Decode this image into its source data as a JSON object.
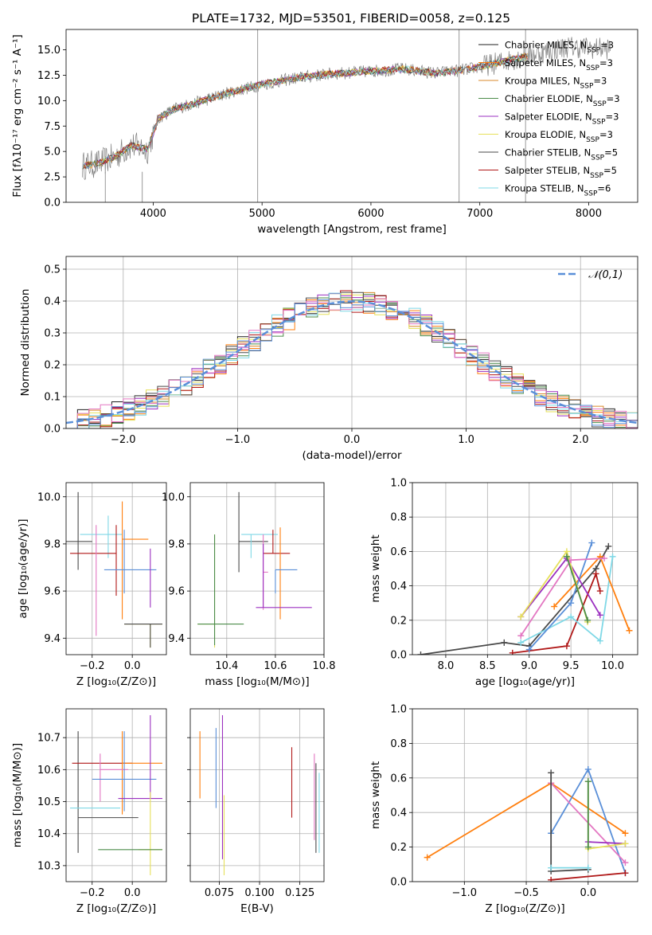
{
  "figure_title": "PLATE=1732, MJD=53501, FIBERID=0058, z=0.125",
  "colors": [
    "#1f1f1f",
    "#ff7f0e",
    "#d98a2b",
    "#4c8c4a",
    "#9b30c0",
    "#e6e05a",
    "#4a4a4a",
    "#b01818",
    "#7fd8e6"
  ],
  "chart_data": [
    {
      "id": "spectrum",
      "type": "line",
      "title": "PLATE=1732, MJD=53501, FIBERID=0058, z=0.125",
      "xlabel": "wavelength [Angstrom, rest frame]",
      "ylabel": "Flux [fλ10⁻¹⁷ erg cm⁻² s⁻¹ A⁻¹]",
      "xlim": [
        3200,
        8450
      ],
      "ylim": [
        0,
        17
      ],
      "xticks": [
        4000,
        5000,
        6000,
        7000,
        8000
      ],
      "yticks": [
        0.0,
        2.5,
        5.0,
        7.5,
        10.0,
        12.5,
        15.0
      ],
      "legend_location": "top-right",
      "series": [
        {
          "name": "Chabrier MILES, N<sub>SSP</sub>=3",
          "color": "#1f1f1f"
        },
        {
          "name": "Salpeter MILES, N<sub>SSP</sub>=3",
          "color": "#ff7f0e"
        },
        {
          "name": "Kroupa MILES, N<sub>SSP</sub>=3",
          "color": "#d98a2b"
        },
        {
          "name": "Chabrier ELODIE, N<sub>SSP</sub>=3",
          "color": "#4c8c4a"
        },
        {
          "name": "Salpeter ELODIE, N<sub>SSP</sub>=3",
          "color": "#9b30c0"
        },
        {
          "name": "Kroupa ELODIE, N<sub>SSP</sub>=3",
          "color": "#e6e05a"
        },
        {
          "name": "Chabrier STELIB, N<sub>SSP</sub>=5",
          "color": "#4a4a4a"
        },
        {
          "name": "Salpeter STELIB, N<sub>SSP</sub>=5",
          "color": "#b01818"
        },
        {
          "name": "Kroupa STELIB, N<sub>SSP</sub>=6",
          "color": "#7fd8e6"
        }
      ],
      "continuum": [
        [
          3350,
          3.6
        ],
        [
          3500,
          3.8
        ],
        [
          3650,
          4.5
        ],
        [
          3800,
          5.6
        ],
        [
          3950,
          5.2
        ],
        [
          4050,
          8.3
        ],
        [
          4200,
          9.2
        ],
        [
          4400,
          9.8
        ],
        [
          4700,
          10.8
        ],
        [
          5000,
          11.6
        ],
        [
          5300,
          12.2
        ],
        [
          5600,
          12.6
        ],
        [
          6000,
          12.9
        ],
        [
          6300,
          13.1
        ],
        [
          6600,
          12.7
        ],
        [
          6900,
          13.1
        ],
        [
          7200,
          13.8
        ],
        [
          7400,
          14.3
        ],
        [
          7600,
          14.8
        ],
        [
          7800,
          15.3
        ],
        [
          8000,
          15.2
        ],
        [
          8200,
          15.1
        ]
      ]
    },
    {
      "id": "residuals",
      "type": "histogram",
      "xlabel": "(data-model)/error",
      "ylabel": "Normed distribution",
      "xlim": [
        -2.5,
        2.5
      ],
      "ylim": [
        0,
        0.54
      ],
      "xticks": [
        -2,
        -1,
        0,
        1,
        2
      ],
      "yticks": [
        0.0,
        0.1,
        0.2,
        0.3,
        0.4,
        0.5
      ],
      "reference_label": "𝒩(0,1)",
      "reference_color": "#5a8fd8",
      "legend_location": "top-right"
    },
    {
      "id": "age_vs_Z",
      "type": "scatter-errorbar",
      "xlabel": "Z [log₁₀(Z/Z⊙)]",
      "ylabel": "age  [log₁₀(age/yr)]",
      "xlim": [
        -0.33,
        0.17
      ],
      "ylim": [
        9.33,
        10.06
      ],
      "xticks": [
        -0.2,
        0.0
      ],
      "yticks": [
        9.4,
        9.6,
        9.8,
        10.0
      ],
      "points": [
        {
          "x": -0.27,
          "y": 9.81,
          "xerr": [
            0.2,
            0.07
          ],
          "yerr": [
            0.12,
            0.21
          ],
          "color": "#4a4a4a"
        },
        {
          "x": -0.12,
          "y": 9.84,
          "xerr": [
            0.14,
            0.07
          ],
          "yerr": [
            0.1,
            0.08
          ],
          "color": "#7fd8e6"
        },
        {
          "x": -0.08,
          "y": 9.76,
          "xerr": [
            0.23,
            0.0
          ],
          "yerr": [
            0.18,
            0.12
          ],
          "color": "#b01818"
        },
        {
          "x": -0.05,
          "y": 9.82,
          "xerr": [
            0.0,
            0.13
          ],
          "yerr": [
            0.34,
            0.16
          ],
          "color": "#ff7f0e"
        },
        {
          "x": -0.18,
          "y": 9.6,
          "xerr": [
            0.0,
            0.0
          ],
          "yerr": [
            0.19,
            0.28
          ],
          "color": "#e377c2"
        },
        {
          "x": -0.04,
          "y": 9.69,
          "xerr": [
            0.1,
            0.16
          ],
          "yerr": [
            0.1,
            0.17
          ],
          "color": "#5a8fd8"
        },
        {
          "x": 0.09,
          "y": 9.53,
          "xerr": [
            0.0,
            0.0
          ],
          "yerr": [
            0.0,
            0.25
          ],
          "color": "#9b30c0"
        },
        {
          "x": 0.09,
          "y": 9.46,
          "xerr": [
            0.13,
            0.06
          ],
          "yerr": [
            0.1,
            0.0
          ],
          "color": "#e6e05a"
        },
        {
          "x": 0.09,
          "y": 9.46,
          "xerr": [
            0.13,
            0.06
          ],
          "yerr": [
            0.1,
            0.0
          ],
          "color": "#4a4a4a"
        }
      ]
    },
    {
      "id": "age_vs_mass",
      "type": "scatter-errorbar",
      "xlabel": "mass [log₁₀(M/M⊙)]",
      "ylabel": "",
      "xlim": [
        10.25,
        10.8
      ],
      "ylim": [
        9.33,
        10.06
      ],
      "xticks": [
        10.4,
        10.6,
        10.8
      ],
      "yticks": [
        9.4,
        9.6,
        9.8,
        10.0
      ],
      "points": [
        {
          "x": 10.45,
          "y": 9.81,
          "xerr": [
            0.0,
            0.12
          ],
          "yerr": [
            0.13,
            0.21
          ],
          "color": "#4a4a4a"
        },
        {
          "x": 10.5,
          "y": 9.84,
          "xerr": [
            0.04,
            0.11
          ],
          "yerr": [
            0.1,
            0.0
          ],
          "color": "#7fd8e6"
        },
        {
          "x": 10.59,
          "y": 9.76,
          "xerr": [
            0.04,
            0.07
          ],
          "yerr": [
            0.0,
            0.1
          ],
          "color": "#b01818"
        },
        {
          "x": 10.62,
          "y": 9.82,
          "xerr": [
            0.0,
            0.0
          ],
          "yerr": [
            0.34,
            0.05
          ],
          "color": "#ff7f0e"
        },
        {
          "x": 10.55,
          "y": 9.68,
          "xerr": [
            0.0,
            0.02
          ],
          "yerr": [
            0.16,
            0.16
          ],
          "color": "#e377c2"
        },
        {
          "x": 10.6,
          "y": 9.69,
          "xerr": [
            0.0,
            0.09
          ],
          "yerr": [
            0.1,
            0.0
          ],
          "color": "#5a8fd8"
        },
        {
          "x": 10.55,
          "y": 9.53,
          "xerr": [
            0.03,
            0.2
          ],
          "yerr": [
            0.0,
            0.27
          ],
          "color": "#9b30c0"
        },
        {
          "x": 10.35,
          "y": 9.46,
          "xerr": [
            0.07,
            0.0
          ],
          "yerr": [
            0.1,
            0.38
          ],
          "color": "#e6e05a"
        },
        {
          "x": 10.35,
          "y": 9.46,
          "xerr": [
            0.07,
            0.12
          ],
          "yerr": [
            0.09,
            0.38
          ],
          "color": "#4c8c4a"
        }
      ]
    },
    {
      "id": "weight_vs_age",
      "type": "line",
      "xlabel": "age  [log₁₀(age/yr)]",
      "ylabel": "mass weight",
      "xlim": [
        7.6,
        10.3
      ],
      "ylim": [
        0,
        1.0
      ],
      "xticks": [
        8.0,
        8.5,
        9.0,
        9.5,
        10.0
      ],
      "yticks": [
        0.0,
        0.2,
        0.4,
        0.6,
        0.8,
        1.0
      ],
      "series": [
        {
          "color": "#4a4a4a",
          "points": [
            [
              7.7,
              0.0
            ],
            [
              8.7,
              0.07
            ],
            [
              9.0,
              0.05
            ],
            [
              9.8,
              0.5
            ],
            [
              9.95,
              0.63
            ]
          ]
        },
        {
          "color": "#b01818",
          "points": [
            [
              8.8,
              0.01
            ],
            [
              9.45,
              0.05
            ],
            [
              9.8,
              0.47
            ],
            [
              9.85,
              0.37
            ]
          ]
        },
        {
          "color": "#7fd8e6",
          "points": [
            [
              8.9,
              0.07
            ],
            [
              9.5,
              0.22
            ],
            [
              9.85,
              0.08
            ],
            [
              10.0,
              0.57
            ]
          ]
        },
        {
          "color": "#ff7f0e",
          "points": [
            [
              9.3,
              0.28
            ],
            [
              9.85,
              0.57
            ],
            [
              10.2,
              0.14
            ]
          ]
        },
        {
          "color": "#5a8fd8",
          "points": [
            [
              9.0,
              0.03
            ],
            [
              9.5,
              0.3
            ],
            [
              9.75,
              0.65
            ]
          ]
        },
        {
          "color": "#9b30c0",
          "points": [
            [
              8.9,
              0.22
            ],
            [
              9.45,
              0.56
            ],
            [
              9.85,
              0.23
            ]
          ]
        },
        {
          "color": "#e6e05a",
          "points": [
            [
              8.9,
              0.22
            ],
            [
              9.45,
              0.6
            ],
            [
              9.7,
              0.19
            ]
          ]
        },
        {
          "color": "#e377c2",
          "points": [
            [
              8.9,
              0.11
            ],
            [
              9.5,
              0.55
            ],
            [
              9.9,
              0.56
            ]
          ]
        },
        {
          "color": "#4c8c4a",
          "points": [
            [
              9.45,
              0.57
            ],
            [
              9.7,
              0.2
            ]
          ]
        }
      ]
    },
    {
      "id": "mass_vs_Z",
      "type": "scatter-errorbar",
      "xlabel": "Z [log₁₀(Z/Z⊙)]",
      "ylabel": "mass [log₁₀(M/M⊙)]",
      "xlim": [
        -0.33,
        0.17
      ],
      "ylim": [
        10.25,
        10.79
      ],
      "xticks": [
        -0.2,
        0.0
      ],
      "yticks": [
        10.3,
        10.4,
        10.5,
        10.6,
        10.7
      ],
      "points": [
        {
          "x": -0.27,
          "y": 10.45,
          "xerr": [
            0.0,
            0.3
          ],
          "yerr": [
            0.11,
            0.27
          ],
          "color": "#4a4a4a"
        },
        {
          "x": -0.26,
          "y": 10.48,
          "xerr": [
            0.05,
            0.2
          ],
          "yerr": [
            0.0,
            0.0
          ],
          "color": "#7fd8e6"
        },
        {
          "x": -0.2,
          "y": 10.62,
          "xerr": [
            0.1,
            0.2
          ],
          "yerr": [
            0.0,
            0.0
          ],
          "color": "#b01818"
        },
        {
          "x": -0.05,
          "y": 10.62,
          "xerr": [
            0.0,
            0.2
          ],
          "yerr": [
            0.16,
            0.1
          ],
          "color": "#ff7f0e"
        },
        {
          "x": -0.16,
          "y": 10.6,
          "xerr": [
            0.0,
            0.14
          ],
          "yerr": [
            0.1,
            0.05
          ],
          "color": "#e377c2"
        },
        {
          "x": -0.04,
          "y": 10.57,
          "xerr": [
            0.16,
            0.16
          ],
          "yerr": [
            0.1,
            0.15
          ],
          "color": "#5a8fd8"
        },
        {
          "x": 0.09,
          "y": 10.51,
          "xerr": [
            0.16,
            0.06
          ],
          "yerr": [
            0.0,
            0.26
          ],
          "color": "#9b30c0"
        },
        {
          "x": 0.09,
          "y": 10.35,
          "xerr": [
            0.06,
            0.06
          ],
          "yerr": [
            0.08,
            0.18
          ],
          "color": "#e6e05a"
        },
        {
          "x": 0.09,
          "y": 10.35,
          "xerr": [
            0.26,
            0.06
          ],
          "yerr": [
            0.0,
            0.0
          ],
          "color": "#4c8c4a"
        }
      ]
    },
    {
      "id": "mass_vs_ebv",
      "type": "scatter-errorbar",
      "xlabel": "E(B-V)",
      "ylabel": "",
      "xlim": [
        0.057,
        0.14
      ],
      "ylim": [
        10.25,
        10.79
      ],
      "xticks": [
        0.075,
        0.1,
        0.125
      ],
      "xtick_labels": [
        "0.075",
        "0.100",
        "0.125"
      ],
      "yticks": [
        10.3,
        10.4,
        10.5,
        10.6,
        10.7
      ],
      "points": [
        {
          "x": 0.063,
          "y": 10.6,
          "yerr": [
            0.09,
            0.12
          ],
          "color": "#ff7f0e"
        },
        {
          "x": 0.073,
          "y": 10.6,
          "yerr": [
            0.12,
            0.13
          ],
          "color": "#5a8fd8"
        },
        {
          "x": 0.077,
          "y": 10.6,
          "yerr": [
            0.28,
            0.17
          ],
          "color": "#9b30c0"
        },
        {
          "x": 0.078,
          "y": 10.4,
          "yerr": [
            0.13,
            0.12
          ],
          "color": "#e6e05a"
        },
        {
          "x": 0.12,
          "y": 10.56,
          "yerr": [
            0.11,
            0.11
          ],
          "color": "#b01818"
        },
        {
          "x": 0.134,
          "y": 10.5,
          "yerr": [
            0.12,
            0.15
          ],
          "color": "#e377c2"
        },
        {
          "x": 0.135,
          "y": 10.49,
          "yerr": [
            0.15,
            0.13
          ],
          "color": "#4a4a4a"
        },
        {
          "x": 0.137,
          "y": 10.46,
          "yerr": [
            0.12,
            0.13
          ],
          "color": "#7fd8e6"
        }
      ]
    },
    {
      "id": "weight_vs_Z",
      "type": "line",
      "xlabel": "Z [log₁₀(Z/Z⊙)]",
      "ylabel": "mass weight",
      "xlim": [
        -1.42,
        0.4
      ],
      "ylim": [
        0,
        1.0
      ],
      "xticks": [
        -1.0,
        -0.5,
        0.0
      ],
      "yticks": [
        0.0,
        0.2,
        0.4,
        0.6,
        0.8,
        1.0
      ],
      "series": [
        {
          "color": "#ff7f0e",
          "points": [
            [
              -1.3,
              0.14
            ],
            [
              -0.3,
              0.57
            ],
            [
              0.3,
              0.28
            ]
          ]
        },
        {
          "color": "#5a8fd8",
          "points": [
            [
              -0.3,
              0.28
            ],
            [
              0.0,
              0.65
            ],
            [
              0.3,
              0.05
            ]
          ]
        },
        {
          "color": "#e377c2",
          "points": [
            [
              -0.3,
              0.57
            ],
            [
              0.3,
              0.11
            ]
          ]
        },
        {
          "color": "#4a4a4a",
          "points": [
            [
              -0.3,
              0.63
            ],
            [
              -0.3,
              0.06
            ],
            [
              0.0,
              0.07
            ]
          ]
        },
        {
          "color": "#b01818",
          "points": [
            [
              -0.3,
              0.01
            ],
            [
              0.3,
              0.05
            ]
          ]
        },
        {
          "color": "#7fd8e6",
          "points": [
            [
              -0.3,
              0.08
            ],
            [
              0.0,
              0.08
            ]
          ]
        },
        {
          "color": "#9b30c0",
          "points": [
            [
              0.0,
              0.23
            ],
            [
              0.3,
              0.22
            ]
          ]
        },
        {
          "color": "#e6e05a",
          "points": [
            [
              0.0,
              0.58
            ],
            [
              0.0,
              0.19
            ],
            [
              0.3,
              0.22
            ]
          ]
        },
        {
          "color": "#4c8c4a",
          "points": [
            [
              0.0,
              0.58
            ],
            [
              0.0,
              0.2
            ]
          ]
        }
      ]
    }
  ]
}
